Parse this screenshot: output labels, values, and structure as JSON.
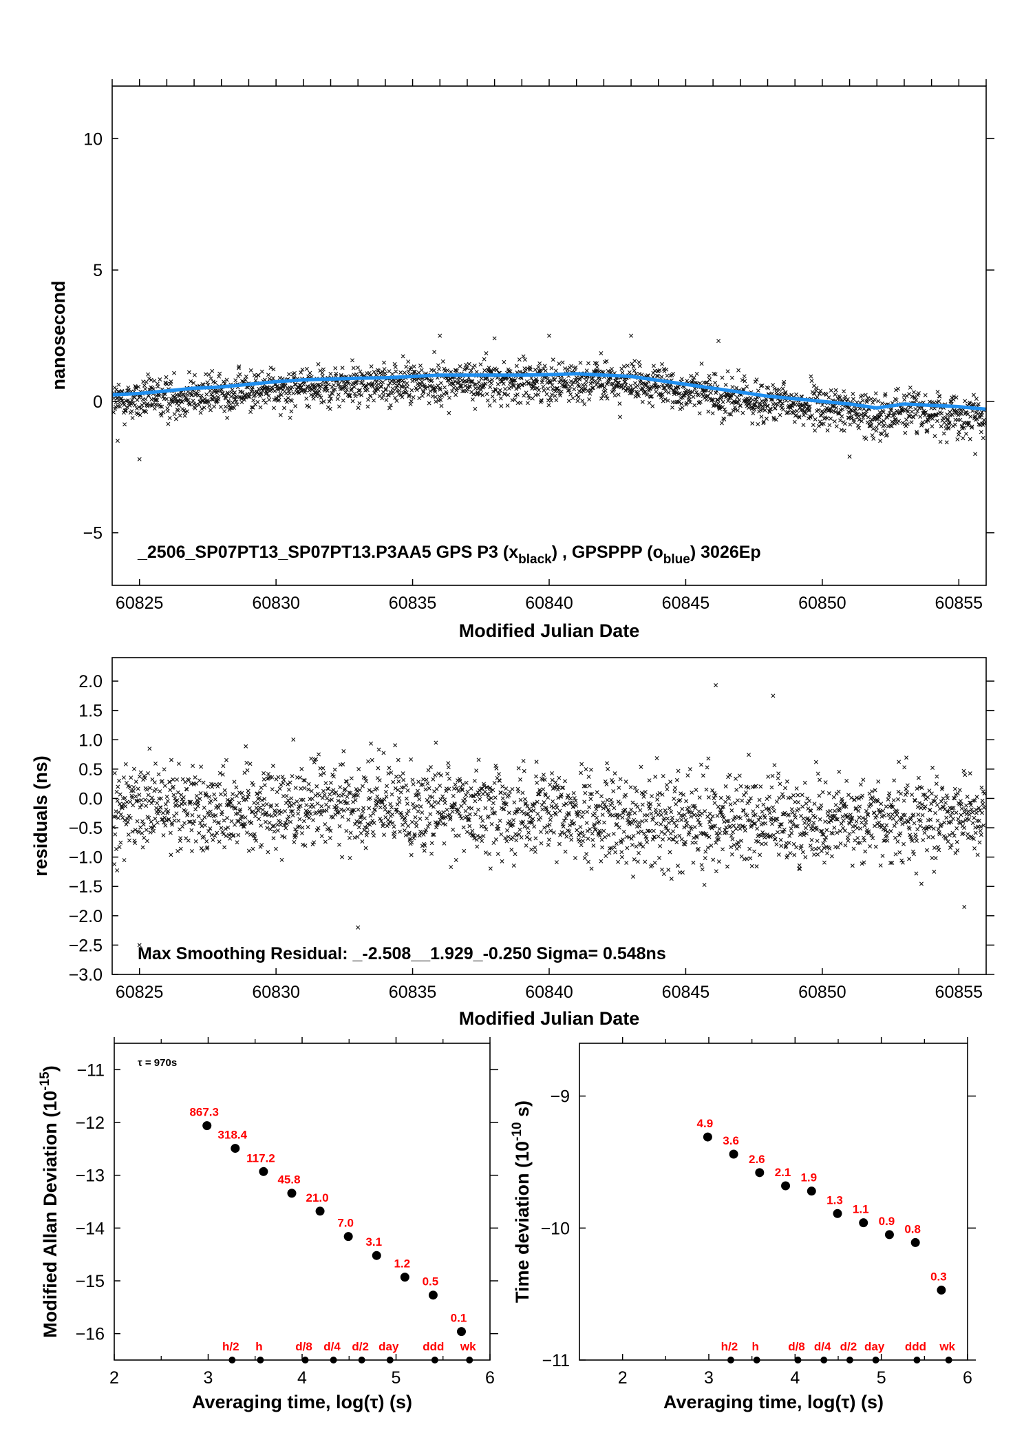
{
  "chart_data": [
    {
      "type": "scatter",
      "xlabel": "Modified Julian Date",
      "ylabel": "nanosecond",
      "annotation": {
        "prefix": "_2506_SP07PT13_SP07PT13.P3AA5     GPS P3 (x",
        "sub1": "black",
        "middle": ") ,  GPSPPP (o",
        "sub2": "blue",
        "suffix": ")  3026Ep"
      },
      "xlim": [
        60824.0,
        60856.0
      ],
      "ylim": [
        -7,
        12
      ],
      "xticks": [
        60825,
        60830,
        60835,
        60840,
        60845,
        60850,
        60855
      ],
      "yticks": [
        -5,
        0,
        5,
        10
      ],
      "ytick_labels": [
        "−5",
        "0",
        "5",
        "10"
      ],
      "grid": false,
      "series": [
        {
          "marker": "x",
          "color": "#000000",
          "count_estimate": 3026,
          "spread_ns": 0.55,
          "outliers": [
            [
              60824.2,
              -1.5
            ],
            [
              60825.0,
              -2.2
            ],
            [
              60836.0,
              2.5
            ],
            [
              60838.0,
              2.4
            ],
            [
              60840.0,
              2.5
            ],
            [
              60843.0,
              2.5
            ],
            [
              60846.2,
              2.3
            ],
            [
              60851.0,
              -2.1
            ],
            [
              60855.6,
              -2.0
            ]
          ]
        },
        {
          "marker": "o",
          "color": "#1f8ff0",
          "curve": [
            [
              60824,
              0.25
            ],
            [
              60825,
              0.3
            ],
            [
              60826,
              0.4
            ],
            [
              60827,
              0.5
            ],
            [
              60828,
              0.55
            ],
            [
              60829,
              0.65
            ],
            [
              60830,
              0.75
            ],
            [
              60831,
              0.82
            ],
            [
              60832,
              0.85
            ],
            [
              60833,
              0.88
            ],
            [
              60834,
              0.9
            ],
            [
              60835,
              0.95
            ],
            [
              60836,
              1.0
            ],
            [
              60837,
              1.0
            ],
            [
              60838,
              1.0
            ],
            [
              60839,
              1.0
            ],
            [
              60840,
              1.02
            ],
            [
              60841,
              1.05
            ],
            [
              60842,
              1.0
            ],
            [
              60843,
              0.95
            ],
            [
              60844,
              0.8
            ],
            [
              60845,
              0.65
            ],
            [
              60846,
              0.5
            ],
            [
              60847,
              0.35
            ],
            [
              60848,
              0.2
            ],
            [
              60849,
              0.1
            ],
            [
              60850,
              0.0
            ],
            [
              60851,
              -0.1
            ],
            [
              60852,
              -0.25
            ],
            [
              60853,
              -0.1
            ],
            [
              60854,
              -0.15
            ],
            [
              60855,
              -0.2
            ],
            [
              60856,
              -0.3
            ]
          ]
        }
      ]
    },
    {
      "type": "scatter",
      "xlabel": "Modified Julian Date",
      "ylabel": "residuals (ns)",
      "annotation": "Max Smoothing Residual: _-2.508__1.929_-0.250  Sigma= 0.548ns",
      "xlim": [
        60824.0,
        60856.0
      ],
      "ylim": [
        -3.0,
        2.4
      ],
      "xticks": [
        60825,
        60830,
        60835,
        60840,
        60845,
        60850,
        60855
      ],
      "yticks": [
        -3.0,
        -2.5,
        -2.0,
        -1.5,
        -1.0,
        -0.5,
        0.0,
        0.5,
        1.0,
        1.5,
        2.0
      ],
      "ytick_labels": [
        "−3.0",
        "−2.5",
        "−2.0",
        "−1.5",
        "−1.0",
        "−0.5",
        "0.0",
        "0.5",
        "1.0",
        "1.5",
        "2.0"
      ],
      "grid": false,
      "series": [
        {
          "marker": "x",
          "color": "#000000",
          "count_estimate": 3026,
          "mean_ns": -0.25,
          "sigma_ns": 0.548,
          "extremes": [
            [
              60825.0,
              -2.5
            ],
            [
              60833.0,
              -2.2
            ],
            [
              60846.1,
              1.93
            ],
            [
              60848.2,
              1.75
            ],
            [
              60855.2,
              -1.85
            ]
          ]
        }
      ]
    },
    {
      "type": "scatter",
      "xlabel": "Averaging time, log(τ) (s)",
      "ylabel": "Modified Allan Deviation (10⁻¹⁵)",
      "ylabel_text": "Modified Allan Deviation (10",
      "ylabel_sup": "-15",
      "ylabel_end": ")",
      "annotation": "τ = 970s",
      "xlim": [
        2,
        6
      ],
      "ylim": [
        -16.5,
        -10.5
      ],
      "xticks": [
        2,
        3,
        4,
        5,
        6
      ],
      "yticks": [
        -16,
        -15,
        -14,
        -13,
        -12,
        -11
      ],
      "ytick_labels": [
        "−16",
        "−15",
        "−14",
        "−13",
        "−12",
        "−11"
      ],
      "points": [
        {
          "x": 2.987,
          "y": -12.06,
          "label": "867.3"
        },
        {
          "x": 3.288,
          "y": -12.49,
          "label": "318.4"
        },
        {
          "x": 3.589,
          "y": -12.93,
          "label": "117.2"
        },
        {
          "x": 3.89,
          "y": -13.34,
          "label": "45.8"
        },
        {
          "x": 4.191,
          "y": -13.68,
          "label": "21.0"
        },
        {
          "x": 4.492,
          "y": -14.16,
          "label": "7.0"
        },
        {
          "x": 4.793,
          "y": -14.52,
          "label": "3.1"
        },
        {
          "x": 5.094,
          "y": -14.93,
          "label": "1.2"
        },
        {
          "x": 5.395,
          "y": -15.27,
          "label": "0.5"
        },
        {
          "x": 5.696,
          "y": -15.96,
          "label": "0.1"
        }
      ],
      "markers": [
        {
          "x": 3.255,
          "label": "h/2"
        },
        {
          "x": 3.556,
          "label": "h"
        },
        {
          "x": 4.033,
          "label": "d/8"
        },
        {
          "x": 4.334,
          "label": "d/4"
        },
        {
          "x": 4.635,
          "label": "d/2"
        },
        {
          "x": 4.936,
          "label": "day"
        },
        {
          "x": 5.413,
          "label": "ddd"
        },
        {
          "x": 5.782,
          "label": "wk"
        }
      ]
    },
    {
      "type": "scatter",
      "xlabel": "Averaging time, log(τ) (s)",
      "ylabel": "Time deviation (10⁻¹⁰ s)",
      "ylabel_text": "Time deviation (10",
      "ylabel_sup": "-10",
      "ylabel_end": " s)",
      "xlim": [
        1.5,
        6.0
      ],
      "ylim": [
        -11.0,
        -8.6
      ],
      "xticks": [
        2,
        3,
        4,
        5,
        6
      ],
      "yticks": [
        -11,
        -10,
        -9
      ],
      "ytick_labels": [
        "−11",
        "−10",
        "−9"
      ],
      "points": [
        {
          "x": 2.987,
          "y": -9.31,
          "label": "4.9"
        },
        {
          "x": 3.288,
          "y": -9.44,
          "label": "3.6"
        },
        {
          "x": 3.589,
          "y": -9.58,
          "label": "2.6"
        },
        {
          "x": 3.89,
          "y": -9.68,
          "label": "2.1"
        },
        {
          "x": 4.191,
          "y": -9.72,
          "label": "1.9"
        },
        {
          "x": 4.492,
          "y": -9.89,
          "label": "1.3"
        },
        {
          "x": 4.793,
          "y": -9.96,
          "label": "1.1"
        },
        {
          "x": 5.094,
          "y": -10.05,
          "label": "0.9"
        },
        {
          "x": 5.395,
          "y": -10.11,
          "label": "0.8"
        },
        {
          "x": 5.696,
          "y": -10.47,
          "label": "0.3"
        }
      ],
      "markers": [
        {
          "x": 3.255,
          "label": "h/2"
        },
        {
          "x": 3.556,
          "label": "h"
        },
        {
          "x": 4.033,
          "label": "d/8"
        },
        {
          "x": 4.334,
          "label": "d/4"
        },
        {
          "x": 4.635,
          "label": "d/2"
        },
        {
          "x": 4.936,
          "label": "day"
        },
        {
          "x": 5.413,
          "label": "ddd"
        },
        {
          "x": 5.782,
          "label": "wk"
        }
      ]
    }
  ]
}
